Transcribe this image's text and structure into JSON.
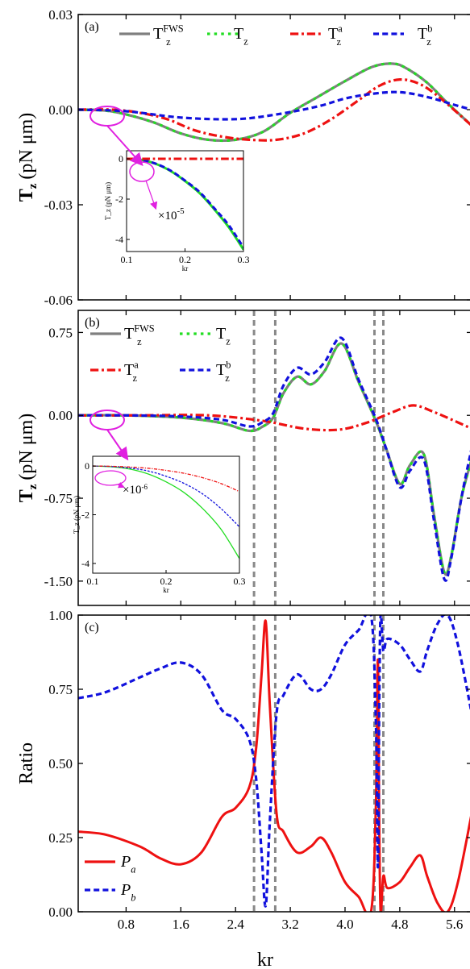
{
  "chart_data": [
    {
      "panel_label": "(a)",
      "type": "line",
      "ylabel": "T_z (pN μm)",
      "ylabel_main": "T",
      "ylabel_sub": "z",
      "ylabel_unit": "(pN μm)",
      "xlim": [
        0.1,
        5.85
      ],
      "ylim": [
        -0.06,
        0.03
      ],
      "yticks": [
        -0.06,
        -0.03,
        0.0,
        0.03
      ],
      "ytick_labels": [
        "-0.06",
        "-0.03",
        "0.00",
        "0.03"
      ],
      "legend_position": "top",
      "series": [
        {
          "name": "T_z^FWS",
          "legend_main": "T",
          "legend_sub": "z",
          "legend_sup": "FWS",
          "color": "#7f7f7f",
          "style": "solid",
          "x": [
            0.1,
            0.5,
            0.8,
            1.2,
            1.6,
            2.0,
            2.4,
            2.8,
            3.2,
            3.6,
            4.0,
            4.4,
            4.7,
            4.9,
            5.2,
            5.5,
            5.85
          ],
          "y": [
            0.0,
            -0.0003,
            -0.0015,
            -0.004,
            -0.0075,
            -0.0095,
            -0.0095,
            -0.007,
            -0.001,
            0.004,
            0.009,
            0.0135,
            0.0145,
            0.013,
            0.0085,
            0.002,
            -0.005
          ]
        },
        {
          "name": "T_z",
          "legend_main": "T",
          "legend_sub": "z",
          "legend_sup": "",
          "color": "#22dd22",
          "style": "dotted",
          "x": [
            0.1,
            0.5,
            0.8,
            1.2,
            1.6,
            2.0,
            2.4,
            2.8,
            3.2,
            3.6,
            4.0,
            4.4,
            4.7,
            4.9,
            5.2,
            5.5,
            5.85
          ],
          "y": [
            0.0,
            -0.0003,
            -0.0015,
            -0.004,
            -0.0075,
            -0.0095,
            -0.0095,
            -0.007,
            -0.001,
            0.004,
            0.009,
            0.0135,
            0.0145,
            0.013,
            0.0085,
            0.002,
            -0.005
          ]
        },
        {
          "name": "T_z^a",
          "legend_main": "T",
          "legend_sub": "z",
          "legend_sup": "a",
          "color": "#ee1111",
          "style": "dashdot",
          "x": [
            0.1,
            0.6,
            1.0,
            1.4,
            1.8,
            2.2,
            2.6,
            3.0,
            3.4,
            3.8,
            4.2,
            4.5,
            4.8,
            5.1,
            5.4,
            5.85
          ],
          "y": [
            0.0,
            0.0,
            -0.001,
            -0.003,
            -0.0065,
            -0.0085,
            -0.0095,
            -0.0095,
            -0.0075,
            -0.003,
            0.003,
            0.0075,
            0.0095,
            0.008,
            0.0035,
            -0.005
          ]
        },
        {
          "name": "T_z^b",
          "legend_main": "T",
          "legend_sub": "z",
          "legend_sup": "b",
          "color": "#1111dd",
          "style": "dashed",
          "x": [
            0.1,
            0.8,
            1.6,
            2.4,
            3.0,
            3.6,
            4.0,
            4.4,
            4.8,
            5.2,
            5.6,
            5.85
          ],
          "y": [
            0.0,
            -0.0005,
            -0.0025,
            -0.003,
            -0.0015,
            0.001,
            0.0035,
            0.005,
            0.0055,
            0.004,
            0.0015,
            0.0
          ]
        }
      ],
      "inset": {
        "xlim": [
          0.1,
          0.3
        ],
        "ylim": [
          -4.6,
          0.4
        ],
        "xticks": [
          0.1,
          0.2,
          0.3
        ],
        "xtick_labels": [
          "0.1",
          "0.2",
          "0.3"
        ],
        "yticks": [
          0,
          -2,
          -4
        ],
        "ytick_labels": [
          "0",
          "-2",
          "-4"
        ],
        "xlabel": "kr",
        "ylabel": "T_z (pN μm)",
        "multiplier": "×10",
        "multiplier_exp": "-5",
        "series": [
          {
            "name": "T_z^FWS",
            "color": "#22dd22",
            "style": "solid",
            "x": [
              0.1,
              0.125,
              0.15,
              0.175,
              0.2,
              0.225,
              0.25,
              0.275,
              0.3
            ],
            "y": [
              0.0,
              -0.05,
              -0.25,
              -0.6,
              -1.1,
              -1.7,
              -2.5,
              -3.4,
              -4.5
            ]
          },
          {
            "name": "T_z^b",
            "color": "#1111dd",
            "style": "dashed",
            "x": [
              0.1,
              0.125,
              0.15,
              0.175,
              0.2,
              0.225,
              0.25,
              0.275,
              0.3
            ],
            "y": [
              0.0,
              -0.05,
              -0.24,
              -0.58,
              -1.08,
              -1.65,
              -2.45,
              -3.3,
              -4.4
            ]
          },
          {
            "name": "T_z^a",
            "color": "#ee1111",
            "style": "dashdot",
            "x": [
              0.1,
              0.2,
              0.3
            ],
            "y": [
              0.0,
              0.0,
              0.0
            ]
          }
        ]
      }
    },
    {
      "panel_label": "(b)",
      "type": "line",
      "ylabel": "T_z (pN μm)",
      "ylabel_main": "T",
      "ylabel_sub": "z",
      "ylabel_unit": "(pN μm)",
      "xlim": [
        0.1,
        5.85
      ],
      "ylim": [
        -1.72,
        0.95
      ],
      "yticks": [
        -1.5,
        -0.75,
        0.0,
        0.75
      ],
      "ytick_labels": [
        "-1.50",
        "-0.75",
        "0.00",
        "0.75"
      ],
      "legend_position": "top-left",
      "vlines": [
        2.67,
        2.98,
        4.43,
        4.56
      ],
      "series": [
        {
          "name": "T_z^FWS",
          "legend_main": "T",
          "legend_sub": "z",
          "legend_sup": "FWS",
          "color": "#7f7f7f",
          "style": "solid",
          "x": [
            0.1,
            0.8,
            1.6,
            2.2,
            2.6,
            2.8,
            2.95,
            3.1,
            3.3,
            3.5,
            3.7,
            3.95,
            4.2,
            4.45,
            4.6,
            4.8,
            4.95,
            5.15,
            5.3,
            5.45,
            5.55,
            5.7,
            5.85
          ],
          "y": [
            0.0,
            0.0,
            -0.02,
            -0.07,
            -0.14,
            -0.1,
            -0.02,
            0.2,
            0.35,
            0.28,
            0.4,
            0.65,
            0.3,
            -0.05,
            -0.3,
            -0.62,
            -0.45,
            -0.35,
            -0.9,
            -1.42,
            -1.28,
            -0.75,
            -0.4
          ]
        },
        {
          "name": "T_z",
          "legend_main": "T",
          "legend_sub": "z",
          "legend_sup": "",
          "color": "#22dd22",
          "style": "dotted",
          "x": [
            0.1,
            0.8,
            1.6,
            2.2,
            2.6,
            2.8,
            2.95,
            3.1,
            3.3,
            3.5,
            3.7,
            3.95,
            4.2,
            4.45,
            4.6,
            4.8,
            4.95,
            5.15,
            5.3,
            5.45,
            5.55,
            5.7,
            5.85
          ],
          "y": [
            0.0,
            0.0,
            -0.02,
            -0.07,
            -0.14,
            -0.1,
            -0.02,
            0.2,
            0.35,
            0.28,
            0.4,
            0.65,
            0.3,
            -0.05,
            -0.3,
            -0.62,
            -0.45,
            -0.35,
            -0.9,
            -1.42,
            -1.28,
            -0.75,
            -0.4
          ]
        },
        {
          "name": "T_z^a",
          "legend_main": "T",
          "legend_sub": "z",
          "legend_sup": "a",
          "color": "#ee1111",
          "style": "dashdot",
          "x": [
            0.1,
            1.0,
            2.0,
            2.8,
            3.4,
            3.9,
            4.3,
            4.7,
            5.0,
            5.3,
            5.6,
            5.85
          ],
          "y": [
            0.0,
            0.0,
            0.0,
            -0.05,
            -0.12,
            -0.13,
            -0.07,
            0.03,
            0.09,
            0.03,
            -0.05,
            -0.12
          ]
        },
        {
          "name": "T_z^b",
          "legend_main": "T",
          "legend_sub": "z",
          "legend_sup": "b",
          "color": "#1111dd",
          "style": "dashed",
          "x": [
            0.1,
            0.8,
            1.6,
            2.2,
            2.6,
            2.8,
            2.95,
            3.1,
            3.3,
            3.5,
            3.7,
            3.95,
            4.2,
            4.45,
            4.6,
            4.8,
            4.95,
            5.15,
            5.3,
            5.45,
            5.55,
            5.7,
            5.85
          ],
          "y": [
            0.0,
            0.0,
            -0.01,
            -0.04,
            -0.1,
            -0.06,
            0.02,
            0.27,
            0.43,
            0.37,
            0.48,
            0.7,
            0.32,
            -0.03,
            -0.3,
            -0.65,
            -0.5,
            -0.4,
            -0.95,
            -1.48,
            -1.3,
            -0.75,
            -0.3
          ]
        }
      ],
      "inset": {
        "xlim": [
          0.1,
          0.3
        ],
        "ylim": [
          -4.4,
          0.4
        ],
        "xticks": [
          0.1,
          0.2,
          0.3
        ],
        "xtick_labels": [
          "0.1",
          "0.2",
          "0.3"
        ],
        "yticks": [
          0,
          -2,
          -4
        ],
        "ytick_labels": [
          "0",
          "-2",
          "-4"
        ],
        "xlabel": "kr",
        "ylabel": "T_z (pN μm)",
        "multiplier": "×10",
        "multiplier_exp": "-6",
        "series": [
          {
            "name": "T_z^FWS",
            "color": "#22dd22",
            "style": "solid",
            "x": [
              0.1,
              0.125,
              0.15,
              0.175,
              0.2,
              0.225,
              0.25,
              0.275,
              0.3
            ],
            "y": [
              0.0,
              -0.03,
              -0.12,
              -0.32,
              -0.65,
              -1.1,
              -1.75,
              -2.6,
              -3.8
            ]
          },
          {
            "name": "T_z^b",
            "color": "#1111dd",
            "style": "dashed",
            "x": [
              0.1,
              0.125,
              0.15,
              0.175,
              0.2,
              0.225,
              0.25,
              0.275,
              0.3
            ],
            "y": [
              0.0,
              -0.02,
              -0.08,
              -0.2,
              -0.42,
              -0.72,
              -1.15,
              -1.75,
              -2.5
            ]
          },
          {
            "name": "T_z^a",
            "color": "#ee1111",
            "style": "dashdot",
            "x": [
              0.1,
              0.125,
              0.15,
              0.175,
              0.2,
              0.225,
              0.25,
              0.275,
              0.3
            ],
            "y": [
              0.0,
              -0.01,
              -0.04,
              -0.09,
              -0.18,
              -0.3,
              -0.48,
              -0.72,
              -1.05
            ]
          }
        ]
      }
    },
    {
      "panel_label": "(c)",
      "type": "line",
      "xlabel": "kr",
      "ylabel": "Ratio",
      "xlim": [
        0.1,
        5.85
      ],
      "ylim": [
        0.0,
        1.0
      ],
      "xticks": [
        0.8,
        1.6,
        2.4,
        3.2,
        4.0,
        4.8,
        5.6
      ],
      "xtick_labels": [
        "0.8",
        "1.6",
        "2.4",
        "3.2",
        "4.0",
        "4.8",
        "5.6"
      ],
      "yticks": [
        0.0,
        0.25,
        0.5,
        0.75,
        1.0
      ],
      "ytick_labels": [
        "0.00",
        "0.25",
        "0.50",
        "0.75",
        "1.00"
      ],
      "legend_position": "bottom-left",
      "vlines": [
        2.67,
        2.98,
        4.43,
        4.56
      ],
      "series": [
        {
          "name": "P_a",
          "legend_main": "P",
          "legend_sub": "a",
          "color": "#ee1111",
          "style": "solid",
          "x": [
            0.1,
            0.5,
            1.0,
            1.3,
            1.6,
            1.9,
            2.2,
            2.4,
            2.6,
            2.7,
            2.78,
            2.84,
            2.9,
            3.0,
            3.1,
            3.3,
            3.5,
            3.65,
            3.8,
            4.0,
            4.2,
            4.38,
            4.45,
            4.48,
            4.5,
            4.52,
            4.56,
            4.62,
            4.8,
            4.95,
            5.1,
            5.2,
            5.35,
            5.5,
            5.65,
            5.85
          ],
          "y": [
            0.27,
            0.26,
            0.22,
            0.18,
            0.16,
            0.2,
            0.32,
            0.35,
            0.42,
            0.55,
            0.8,
            0.98,
            0.7,
            0.33,
            0.27,
            0.2,
            0.22,
            0.25,
            0.2,
            0.1,
            0.05,
            0.0,
            0.35,
            0.85,
            0.3,
            0.0,
            0.12,
            0.08,
            0.1,
            0.15,
            0.19,
            0.12,
            0.03,
            0.0,
            0.1,
            0.33
          ]
        },
        {
          "name": "P_b",
          "legend_main": "P",
          "legend_sub": "b",
          "color": "#1111dd",
          "style": "dashed",
          "x": [
            0.1,
            0.5,
            1.0,
            1.3,
            1.6,
            1.9,
            2.2,
            2.4,
            2.6,
            2.7,
            2.78,
            2.84,
            2.9,
            3.0,
            3.1,
            3.3,
            3.5,
            3.65,
            3.8,
            4.0,
            4.2,
            4.38,
            4.45,
            4.48,
            4.5,
            4.52,
            4.56,
            4.62,
            4.8,
            4.95,
            5.1,
            5.2,
            5.35,
            5.5,
            5.65,
            5.85
          ],
          "y": [
            0.72,
            0.74,
            0.79,
            0.82,
            0.84,
            0.8,
            0.68,
            0.65,
            0.58,
            0.45,
            0.2,
            0.02,
            0.3,
            0.67,
            0.73,
            0.8,
            0.75,
            0.75,
            0.8,
            0.9,
            0.95,
            1.0,
            0.65,
            0.15,
            0.7,
            1.0,
            0.88,
            0.92,
            0.9,
            0.85,
            0.81,
            0.88,
            0.97,
            1.0,
            0.9,
            0.67
          ]
        }
      ]
    }
  ]
}
